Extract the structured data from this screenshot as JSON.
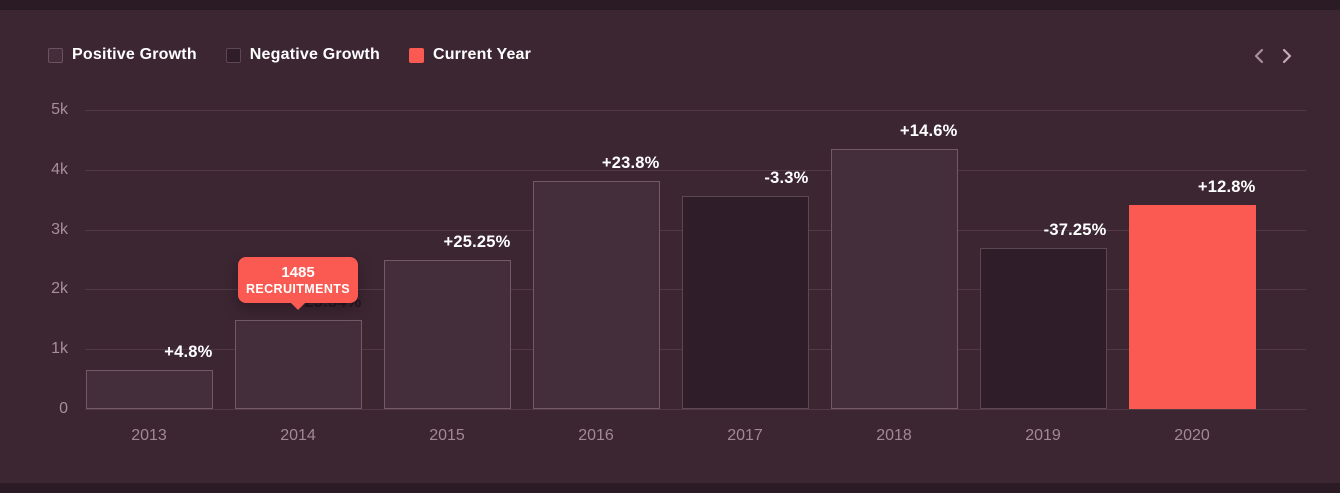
{
  "colors": {
    "background": "#3c2632",
    "edge_strip": "#2b1b25",
    "positive_bar": "#452e3b",
    "negative_bar": "#2f1e29",
    "current_bar": "#fb5a52",
    "grid_line": "rgba(226,190,204,0.13)",
    "axis_text": "#a78f9b",
    "growth_label_text": "#ffffff"
  },
  "legend": {
    "items": [
      {
        "label": "Positive Growth",
        "type": "positive"
      },
      {
        "label": "Negative Growth",
        "type": "negative"
      },
      {
        "label": "Current Year",
        "type": "current"
      }
    ]
  },
  "pager": {
    "prev": "chevron-left",
    "next": "chevron-right"
  },
  "tooltip": {
    "value": "1485",
    "label": "RECRUITMENTS",
    "year": "2014"
  },
  "chart_data": {
    "type": "bar",
    "title": "",
    "xlabel": "",
    "ylabel": "",
    "categories": [
      "2013",
      "2014",
      "2015",
      "2016",
      "2017",
      "2018",
      "2019",
      "2020"
    ],
    "values": [
      650,
      1485,
      2490,
      3810,
      3560,
      4350,
      2690,
      3410
    ],
    "growth_labels": [
      "+4.8%",
      "+25.84%",
      "+25.25%",
      "+23.8%",
      "-3.3%",
      "+14.6%",
      "-37.25%",
      "+12.8%"
    ],
    "bar_types": [
      "positive",
      "positive",
      "positive",
      "positive",
      "negative",
      "positive",
      "negative",
      "current"
    ],
    "yticks": [
      {
        "label": "5k",
        "value": 5000
      },
      {
        "label": "4k",
        "value": 4000
      },
      {
        "label": "3k",
        "value": 3000
      },
      {
        "label": "2k",
        "value": 2000
      },
      {
        "label": "1k",
        "value": 1000
      },
      {
        "label": "0",
        "value": 0
      }
    ],
    "ylim": [
      0,
      5000
    ],
    "grid": true,
    "legend_position": "top-left"
  }
}
